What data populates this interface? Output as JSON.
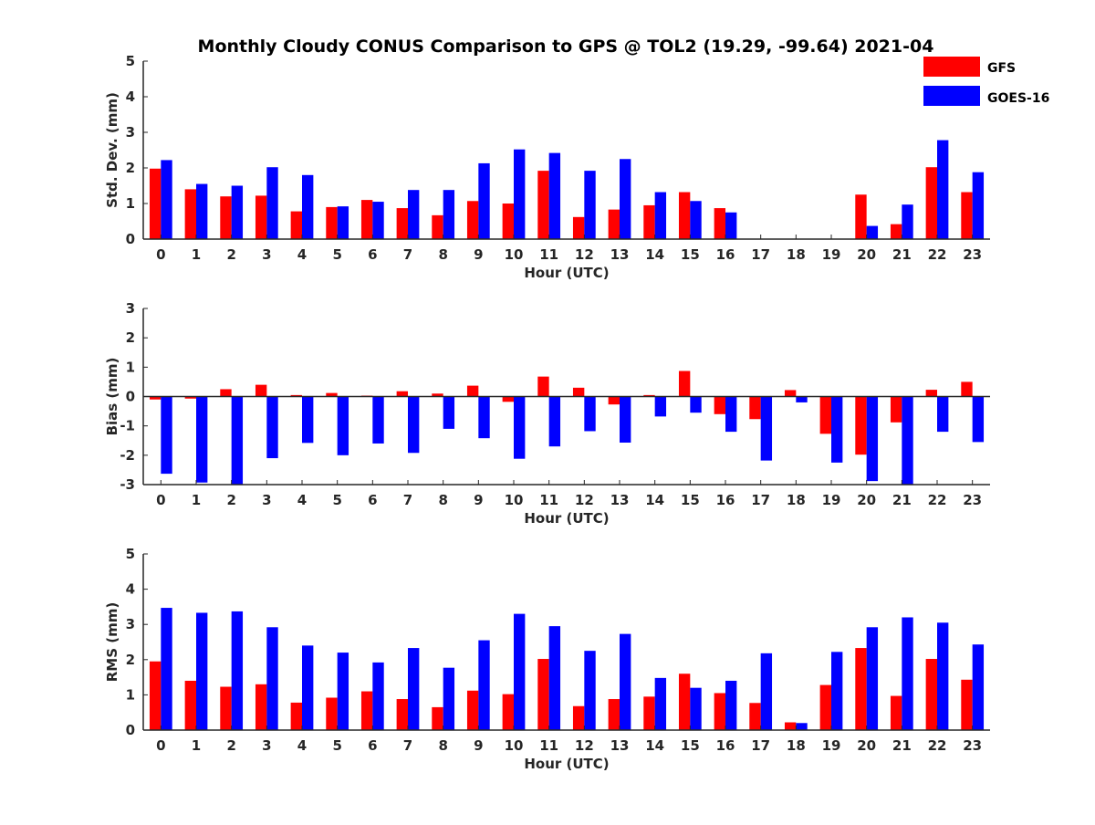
{
  "title": "Monthly Cloudy CONUS Comparison to GPS @ TOL2 (19.29, -99.64) 2021-04",
  "legend": {
    "placement": "top-right",
    "entries": [
      {
        "name": "GFS",
        "color": "#ff0000"
      },
      {
        "name": "GOES-16",
        "color": "#0000ff"
      }
    ]
  },
  "chart_data": [
    {
      "type": "bar",
      "ylabel": "Std. Dev. (mm)",
      "xlabel": "Hour (UTC)",
      "ylim": [
        0,
        5
      ],
      "yticks": [
        0,
        1,
        2,
        3,
        4,
        5
      ],
      "categories": [
        "0",
        "1",
        "2",
        "3",
        "4",
        "5",
        "6",
        "7",
        "8",
        "9",
        "10",
        "11",
        "12",
        "13",
        "14",
        "15",
        "16",
        "17",
        "18",
        "19",
        "20",
        "21",
        "22",
        "23"
      ],
      "series": [
        {
          "name": "GFS",
          "color": "#ff0000",
          "values": [
            1.98,
            1.4,
            1.2,
            1.22,
            0.78,
            0.9,
            1.1,
            0.87,
            0.67,
            1.07,
            1.0,
            1.92,
            0.62,
            0.83,
            0.95,
            1.32,
            0.87,
            0,
            0,
            0,
            1.25,
            0.42,
            2.02,
            1.32
          ]
        },
        {
          "name": "GOES-16",
          "color": "#0000ff",
          "values": [
            2.22,
            1.55,
            1.5,
            2.02,
            1.8,
            0.92,
            1.05,
            1.38,
            1.38,
            2.13,
            2.52,
            2.42,
            1.92,
            2.25,
            1.32,
            1.07,
            0.75,
            0,
            0,
            0,
            0.37,
            0.97,
            2.78,
            1.88
          ]
        }
      ]
    },
    {
      "type": "bar",
      "ylabel": "Bias (mm)",
      "xlabel": "Hour (UTC)",
      "ylim": [
        -3,
        3
      ],
      "yticks": [
        -3,
        -2,
        -1,
        0,
        1,
        2,
        3
      ],
      "categories": [
        "0",
        "1",
        "2",
        "3",
        "4",
        "5",
        "6",
        "7",
        "8",
        "9",
        "10",
        "11",
        "12",
        "13",
        "14",
        "15",
        "16",
        "17",
        "18",
        "19",
        "20",
        "21",
        "22",
        "23"
      ],
      "series": [
        {
          "name": "GFS",
          "color": "#ff0000",
          "values": [
            -0.1,
            -0.07,
            0.25,
            0.4,
            0.05,
            0.12,
            0.03,
            0.18,
            0.1,
            0.37,
            -0.18,
            0.68,
            0.3,
            -0.27,
            0.05,
            0.87,
            -0.6,
            -0.77,
            0.22,
            -1.27,
            -1.98,
            -0.88,
            0.23,
            0.5
          ]
        },
        {
          "name": "GOES-16",
          "color": "#0000ff",
          "values": [
            -2.63,
            -2.93,
            -3.0,
            -2.1,
            -1.58,
            -2.0,
            -1.6,
            -1.92,
            -1.1,
            -1.42,
            -2.12,
            -1.7,
            -1.18,
            -1.57,
            -0.68,
            -0.55,
            -1.2,
            -2.18,
            -0.2,
            -2.25,
            -2.88,
            -3.0,
            -1.2,
            -1.55
          ]
        }
      ]
    },
    {
      "type": "bar",
      "ylabel": "RMS (mm)",
      "xlabel": "Hour (UTC)",
      "ylim": [
        0,
        5
      ],
      "yticks": [
        0,
        1,
        2,
        3,
        4,
        5
      ],
      "categories": [
        "0",
        "1",
        "2",
        "3",
        "4",
        "5",
        "6",
        "7",
        "8",
        "9",
        "10",
        "11",
        "12",
        "13",
        "14",
        "15",
        "16",
        "17",
        "18",
        "19",
        "20",
        "21",
        "22",
        "23"
      ],
      "series": [
        {
          "name": "GFS",
          "color": "#ff0000",
          "values": [
            1.95,
            1.4,
            1.23,
            1.3,
            0.78,
            0.92,
            1.1,
            0.88,
            0.65,
            1.12,
            1.02,
            2.02,
            0.68,
            0.88,
            0.95,
            1.6,
            1.05,
            0.77,
            0.22,
            1.28,
            2.33,
            0.97,
            2.02,
            1.43
          ]
        },
        {
          "name": "GOES-16",
          "color": "#0000ff",
          "values": [
            3.47,
            3.33,
            3.37,
            2.92,
            2.4,
            2.2,
            1.92,
            2.33,
            1.77,
            2.55,
            3.3,
            2.95,
            2.25,
            2.73,
            1.48,
            1.2,
            1.4,
            2.18,
            0.2,
            2.22,
            2.92,
            3.2,
            3.05,
            2.43
          ]
        }
      ]
    }
  ]
}
